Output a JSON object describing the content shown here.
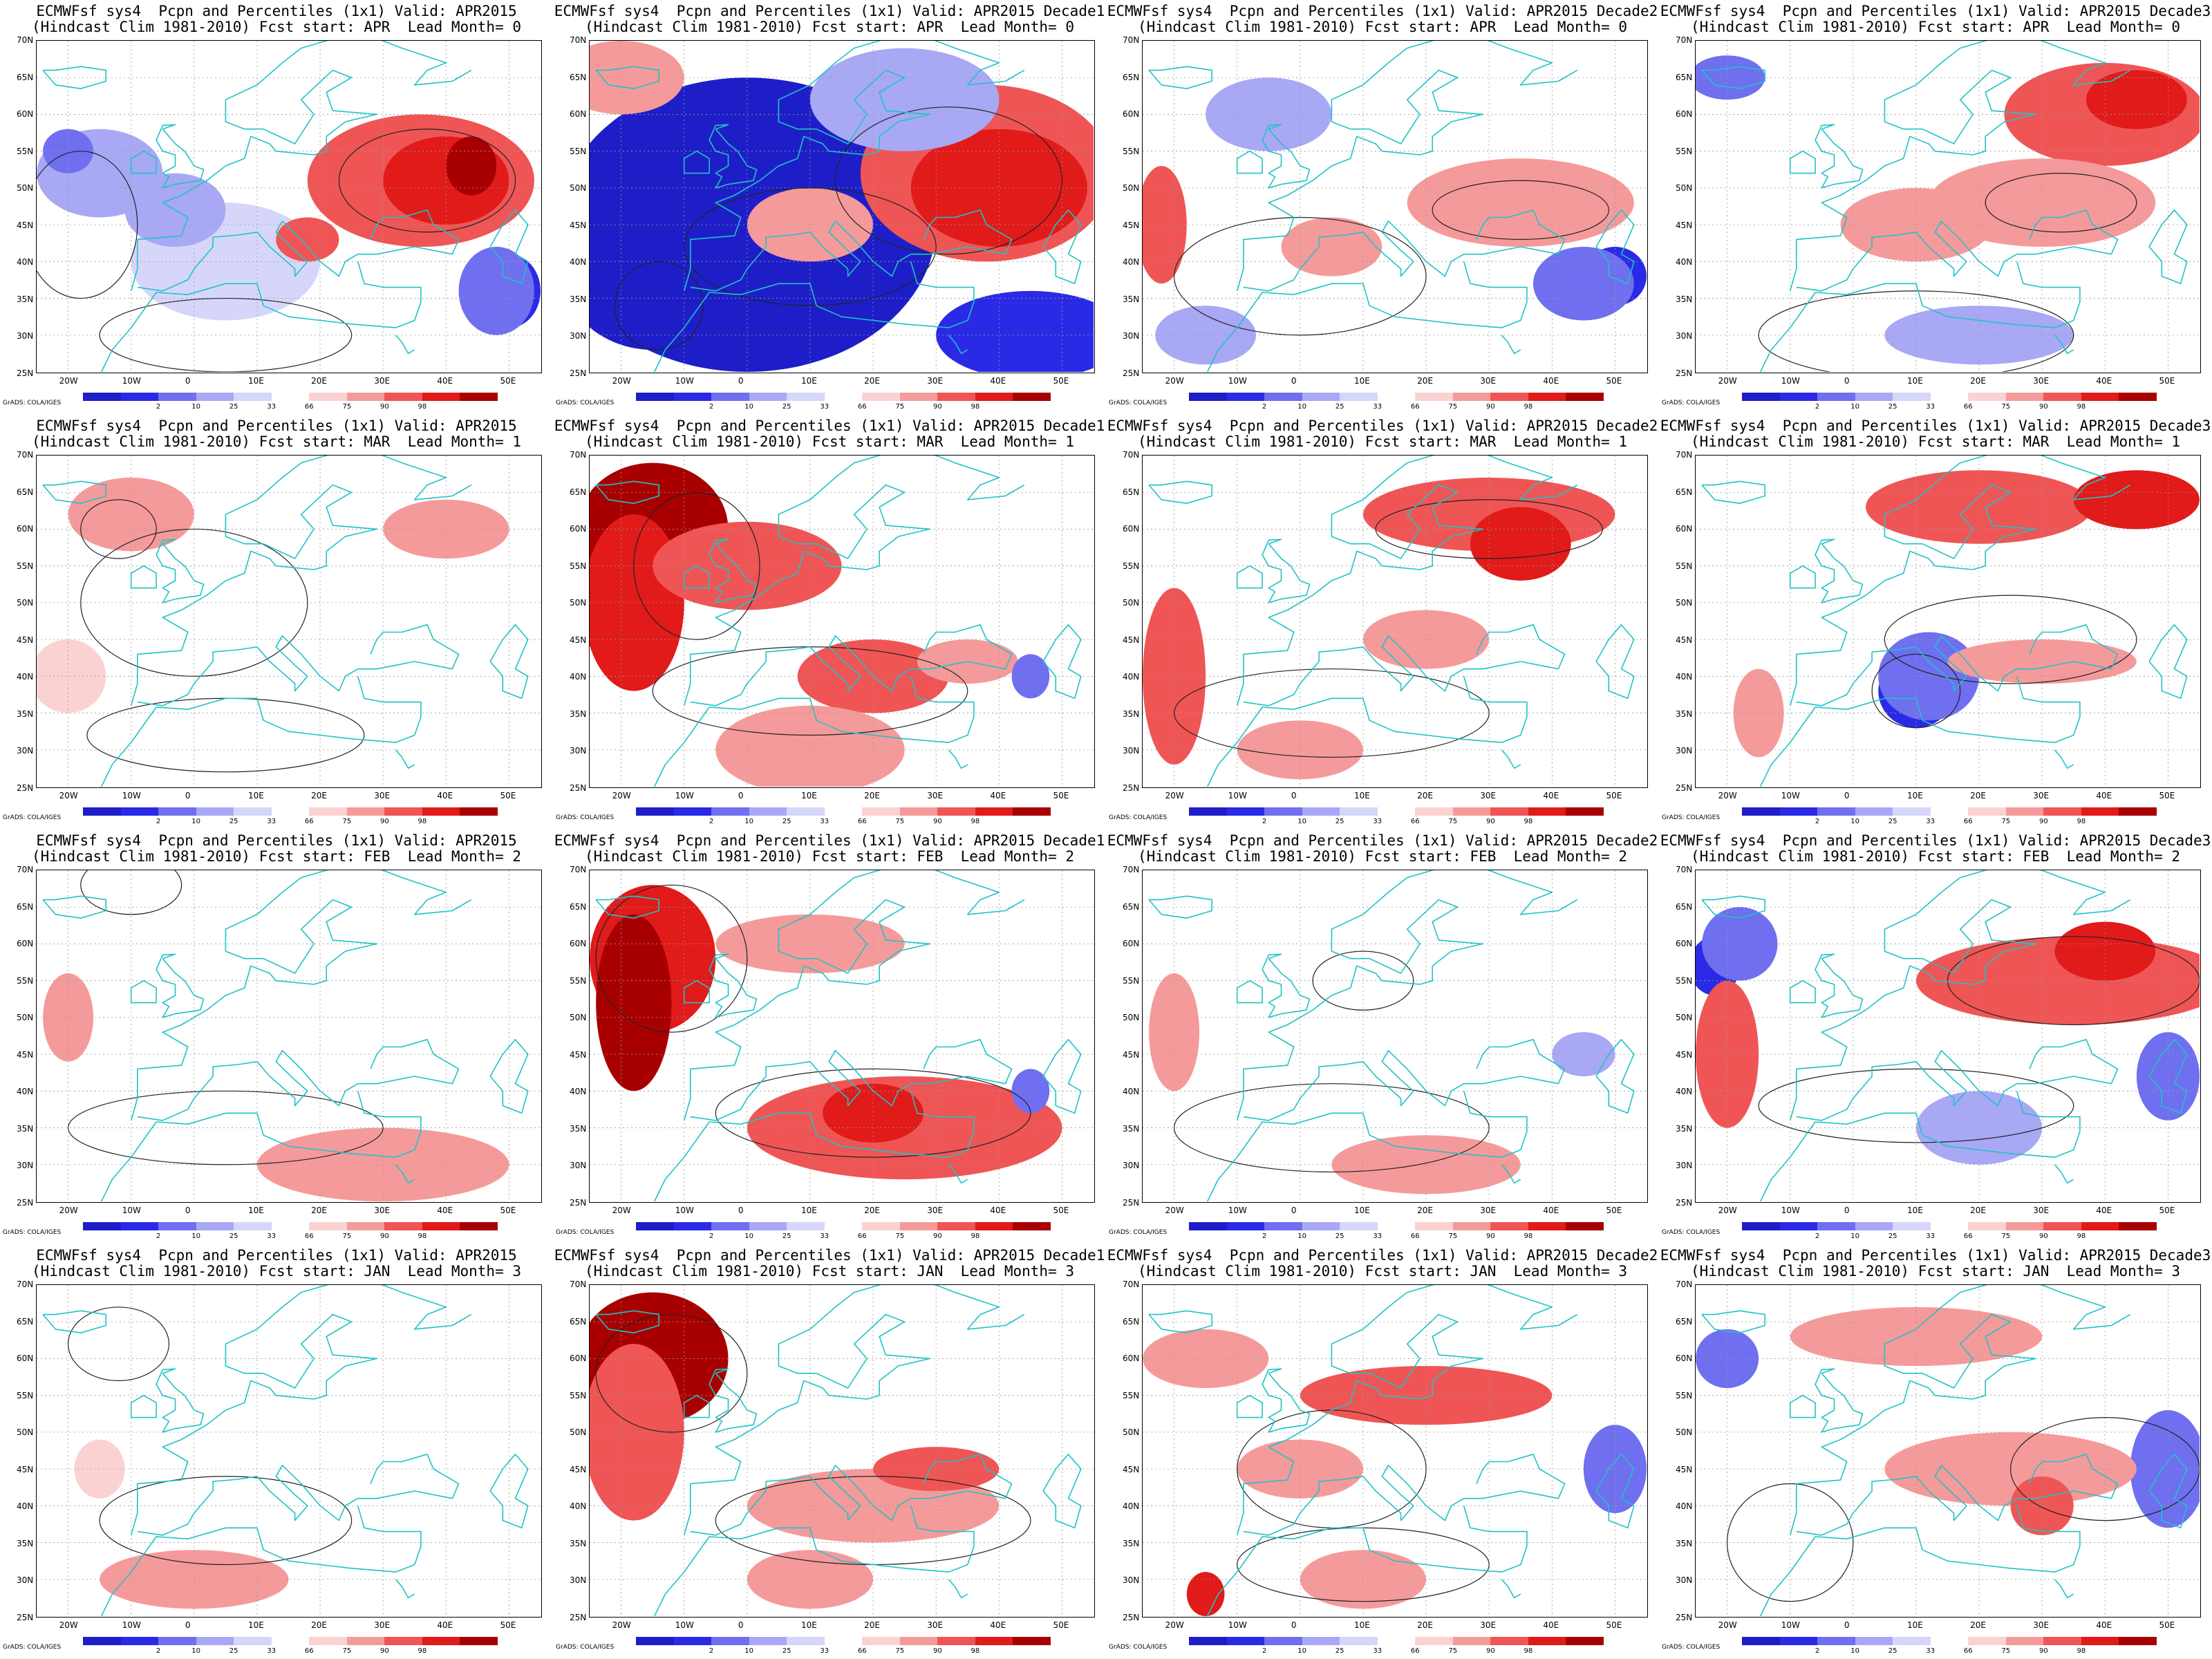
{
  "colorbar": {
    "ticks": [
      "2",
      "10",
      "25",
      "33",
      "66",
      "75",
      "90",
      "98"
    ],
    "colors": [
      "#1e1ec8",
      "#2a2ae6",
      "#6f6ff0",
      "#a8a8f5",
      "#d6d6fb",
      "#ffffff",
      "#fbd2d2",
      "#f59a9a",
      "#ef5555",
      "#e11a1a",
      "#a80000"
    ]
  },
  "lat_labels": [
    "70N",
    "65N",
    "60N",
    "55N",
    "50N",
    "45N",
    "40N",
    "35N",
    "30N",
    "25N"
  ],
  "lon_labels": [
    "20W",
    "10W",
    "0",
    "10E",
    "20E",
    "30E",
    "40E",
    "50E"
  ],
  "credit": "GrADS: COLA/IGES",
  "rows": [
    {
      "lead": "0",
      "fcst": "APR",
      "panels": [
        {
          "line1": "ECMWFsf sys4  Pcpn and Percentiles (1x1) Valid: APR2015",
          "line2": "(Hindcast Clim 1981-2010) Fcst start: APR  Lead Month= 0",
          "style": "r0c0"
        },
        {
          "line1": "ECMWFsf sys4  Pcpn and Percentiles (1x1) Valid: APR2015 Decade1",
          "line2": "(Hindcast Clim 1981-2010) Fcst start: APR  Lead Month= 0",
          "style": "r0c1"
        },
        {
          "line1": "ECMWFsf sys4  Pcpn and Percentiles (1x1) Valid: APR2015 Decade2",
          "line2": "(Hindcast Clim 1981-2010) Fcst start: APR  Lead Month= 0",
          "style": "r0c2"
        },
        {
          "line1": "ECMWFsf sys4  Pcpn and Percentiles (1x1) Valid: APR2015 Decade3",
          "line2": "(Hindcast Clim 1981-2010) Fcst start: APR  Lead Month= 0",
          "style": "r0c3"
        }
      ]
    },
    {
      "lead": "1",
      "fcst": "MAR",
      "panels": [
        {
          "line1": "ECMWFsf sys4  Pcpn and Percentiles (1x1) Valid: APR2015",
          "line2": "(Hindcast Clim 1981-2010) Fcst start: MAR  Lead Month= 1",
          "style": "r1c0"
        },
        {
          "line1": "ECMWFsf sys4  Pcpn and Percentiles (1x1) Valid: APR2015 Decade1",
          "line2": "(Hindcast Clim 1981-2010) Fcst start: MAR  Lead Month= 1",
          "style": "r1c1"
        },
        {
          "line1": "ECMWFsf sys4  Pcpn and Percentiles (1x1) Valid: APR2015 Decade2",
          "line2": "(Hindcast Clim 1981-2010) Fcst start: MAR  Lead Month= 1",
          "style": "r1c2"
        },
        {
          "line1": "ECMWFsf sys4  Pcpn and Percentiles (1x1) Valid: APR2015 Decade3",
          "line2": "(Hindcast Clim 1981-2010) Fcst start: MAR  Lead Month= 1",
          "style": "r1c3"
        }
      ]
    },
    {
      "lead": "2",
      "fcst": "FEB",
      "panels": [
        {
          "line1": "ECMWFsf sys4  Pcpn and Percentiles (1x1) Valid: APR2015",
          "line2": "(Hindcast Clim 1981-2010) Fcst start: FEB  Lead Month= 2",
          "style": "r2c0"
        },
        {
          "line1": "ECMWFsf sys4  Pcpn and Percentiles (1x1) Valid: APR2015 Decade1",
          "line2": "(Hindcast Clim 1981-2010) Fcst start: FEB  Lead Month= 2",
          "style": "r2c1"
        },
        {
          "line1": "ECMWFsf sys4  Pcpn and Percentiles (1x1) Valid: APR2015 Decade2",
          "line2": "(Hindcast Clim 1981-2010) Fcst start: FEB  Lead Month= 2",
          "style": "r2c2"
        },
        {
          "line1": "ECMWFsf sys4  Pcpn and Percentiles (1x1) Valid: APR2015 Decade3",
          "line2": "(Hindcast Clim 1981-2010) Fcst start: FEB  Lead Month= 2",
          "style": "r2c3"
        }
      ]
    },
    {
      "lead": "3",
      "fcst": "JAN",
      "panels": [
        {
          "line1": "ECMWFsf sys4  Pcpn and Percentiles (1x1) Valid: APR2015",
          "line2": "(Hindcast Clim 1981-2010) Fcst start: JAN  Lead Month= 3",
          "style": "r3c0"
        },
        {
          "line1": "ECMWFsf sys4  Pcpn and Percentiles (1x1) Valid: APR2015 Decade1",
          "line2": "(Hindcast Clim 1981-2010) Fcst start: JAN  Lead Month= 3",
          "style": "r3c1"
        },
        {
          "line1": "ECMWFsf sys4  Pcpn and Percentiles (1x1) Valid: APR2015 Decade2",
          "line2": "(Hindcast Clim 1981-2010) Fcst start: JAN  Lead Month= 3",
          "style": "r3c2"
        },
        {
          "line1": "ECMWFsf sys4  Pcpn and Percentiles (1x1) Valid: APR2015 Decade3",
          "line2": "(Hindcast Clim 1981-2010) Fcst start: JAN  Lead Month= 3",
          "style": "r3c3"
        }
      ]
    }
  ]
}
